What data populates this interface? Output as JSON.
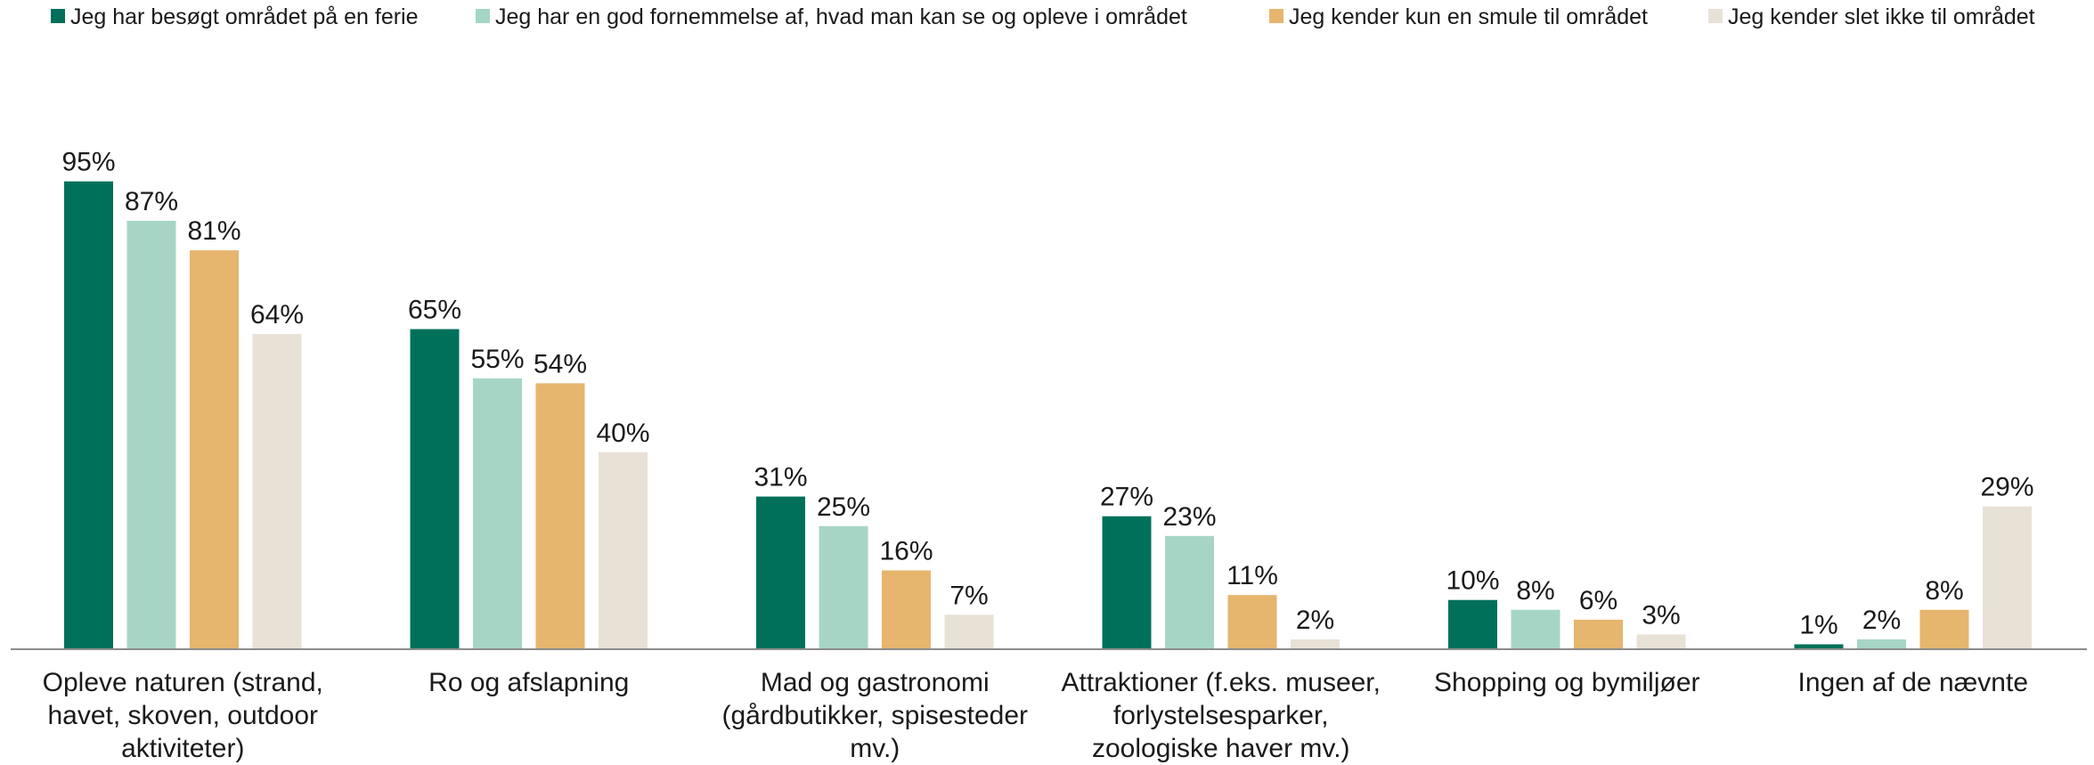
{
  "chart_data": {
    "type": "bar",
    "categories": [
      "Opleve naturen (strand, havet, skoven, outdoor aktiviteter)",
      "Ro og afslapning",
      "Mad og gastronomi (gårdbutikker, spisesteder mv.)",
      "Attraktioner (f.eks. museer, forlystelsesparker, zoologiske haver mv.)",
      "Shopping og bymiljøer",
      "Ingen af de nævnte"
    ],
    "series": [
      {
        "name": "Jeg har besøgt området på en ferie",
        "color": "#00705a",
        "values": [
          95,
          65,
          31,
          27,
          10,
          1
        ],
        "value_labels": [
          "95%",
          "65%",
          "31%",
          "27%",
          "10%",
          "1%"
        ]
      },
      {
        "name": "Jeg har en god fornemmelse af, hvad man kan se og opleve i området",
        "color": "#a6d5c6",
        "values": [
          87,
          55,
          25,
          23,
          8,
          2
        ],
        "value_labels": [
          "87%",
          "55%",
          "25%",
          "23%",
          "8%",
          "2%"
        ]
      },
      {
        "name": "Jeg kender kun en smule til området",
        "color": "#e6b56e",
        "values": [
          81,
          54,
          16,
          11,
          6,
          8
        ],
        "value_labels": [
          "81%",
          "54%",
          "16%",
          "11%",
          "6%",
          "8%"
        ]
      },
      {
        "name": "Jeg kender slet ikke til området",
        "color": "#e8e1d6",
        "values": [
          64,
          40,
          7,
          2,
          3,
          29
        ],
        "value_labels": [
          "64%",
          "40%",
          "7%",
          "2%",
          "3%",
          "29%"
        ]
      }
    ],
    "legend": "top"
  }
}
